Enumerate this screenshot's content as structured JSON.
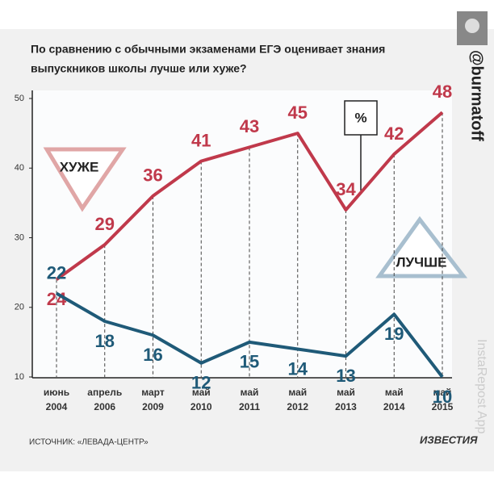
{
  "chart_data": {
    "type": "line",
    "title": [
      "По сравнению с обычными экзаменами ЕГЭ оценивает знания",
      "выпускников школы лучше или хуже?"
    ],
    "categories": [
      "июнь 2004",
      "апрель 2006",
      "март 2009",
      "май 2010",
      "май 2011",
      "май 2012",
      "май 2013",
      "май 2014",
      "май 2015"
    ],
    "series": [
      {
        "name": "ХУЖЕ",
        "color": "#c0394b",
        "values": [
          24,
          29,
          36,
          41,
          43,
          45,
          34,
          42,
          48
        ]
      },
      {
        "name": "ЛУЧШЕ",
        "color": "#1f5a78",
        "values": [
          22,
          18,
          16,
          12,
          15,
          14,
          13,
          19,
          10
        ]
      }
    ],
    "ylim": [
      10,
      50
    ],
    "yticks": [
      10,
      20,
      30,
      40,
      50
    ],
    "annotation": "%",
    "source": "ИСТОЧНИК: «ЛЕВАДА-ЦЕНТР»",
    "publisher": "ИЗВЕСТИЯ",
    "username": "@burmatoff",
    "watermark": "InstaRepost App"
  }
}
